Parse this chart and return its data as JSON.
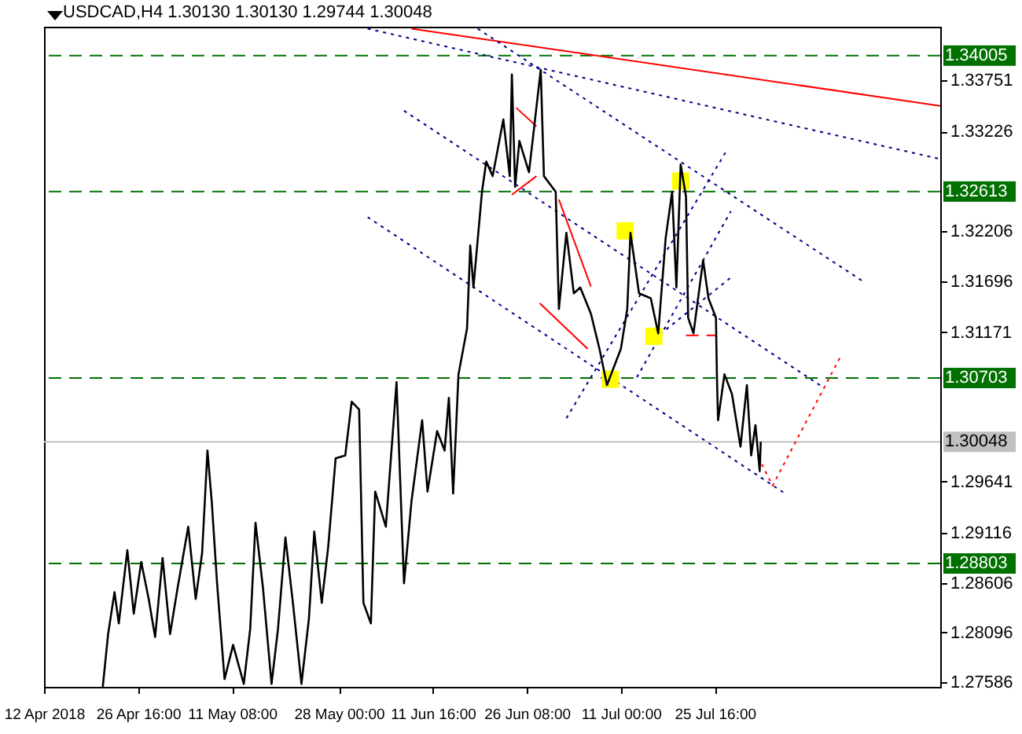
{
  "chart_data": {
    "type": "line",
    "title": "USDCAD,H4  1.30130 1.30130 1.29744 1.30048",
    "xlim": [
      "2018-04-12T00:00",
      "2018-08-29T20:00"
    ],
    "xticks": [
      {
        "value": "2018-04-12T00:00",
        "label": "12 Apr 2018"
      },
      {
        "value": "2018-04-26T16:00",
        "label": "26 Apr 16:00"
      },
      {
        "value": "2018-05-11T08:00",
        "label": "11 May 08:00"
      },
      {
        "value": "2018-05-28T00:00",
        "label": "28 May 00:00"
      },
      {
        "value": "2018-06-11T16:00",
        "label": "11 Jun 16:00"
      },
      {
        "value": "2018-06-26T08:00",
        "label": "26 Jun 08:00"
      },
      {
        "value": "2018-07-11T00:00",
        "label": "11 Jul 00:00"
      },
      {
        "value": "2018-07-25T16:00",
        "label": "25 Jul 16:00"
      }
    ],
    "ylim": [
      1.2754,
      1.343
    ],
    "yticks": [
      1.33751,
      1.33226,
      1.32206,
      1.31696,
      1.31171,
      1.29641,
      1.29116,
      1.28606,
      1.28096,
      1.27586
    ],
    "series": [
      {
        "color": "#000000",
        "x": [
          "2018-04-21T04:00",
          "2018-04-22T00:00",
          "2018-04-23T00:00",
          "2018-04-23T16:00",
          "2018-04-25T00:00",
          "2018-04-26T00:00",
          "2018-04-27T04:00",
          "2018-04-28T08:00",
          "2018-04-29T08:00",
          "2018-04-30T12:00",
          "2018-05-01T16:00",
          "2018-05-02T20:00",
          "2018-05-04T12:00",
          "2018-05-05T16:00",
          "2018-05-06T16:00",
          "2018-05-07T12:00",
          "2018-05-08T04:00",
          "2018-05-09T00:00",
          "2018-05-10T04:00",
          "2018-05-11T12:00",
          "2018-05-13T04:00",
          "2018-05-14T04:00",
          "2018-05-15T00:00",
          "2018-05-16T04:00",
          "2018-05-17T12:00",
          "2018-05-18T12:00",
          "2018-05-19T16:00",
          "2018-05-20T20:00",
          "2018-05-22T04:00",
          "2018-05-23T08:00",
          "2018-05-24T04:00",
          "2018-05-25T08:00",
          "2018-05-26T08:00",
          "2018-05-27T12:00",
          "2018-05-29T00:00",
          "2018-05-30T00:00",
          "2018-05-31T04:00",
          "2018-05-31T20:00",
          "2018-06-02T00:00",
          "2018-06-02T16:00",
          "2018-06-04T08:00",
          "2018-06-06T00:00",
          "2018-06-07T04:00",
          "2018-06-08T08:00",
          "2018-06-10T00:00",
          "2018-06-10T20:00",
          "2018-06-12T08:00",
          "2018-06-13T12:00",
          "2018-06-14T04:00",
          "2018-06-14T20:00",
          "2018-06-15T16:00",
          "2018-06-17T00:00",
          "2018-06-17T12:00",
          "2018-06-18T00:00",
          "2018-06-19T08:00",
          "2018-06-20T00:00",
          "2018-06-21T00:00",
          "2018-06-22T16:00",
          "2018-06-23T16:00",
          "2018-06-24T00:00",
          "2018-06-24T12:00",
          "2018-06-25T04:00",
          "2018-06-26T16:00",
          "2018-06-27T08:00",
          "2018-06-28T12:00",
          "2018-06-29T00:00",
          "2018-06-30T20:00",
          "2018-07-01T08:00",
          "2018-07-02T12:00",
          "2018-07-03T16:00",
          "2018-07-04T16:00",
          "2018-07-06T08:00",
          "2018-07-07T16:00",
          "2018-07-08T20:00",
          "2018-07-11T00:00",
          "2018-07-12T00:00",
          "2018-07-12T12:00",
          "2018-07-13T20:00",
          "2018-07-15T16:00",
          "2018-07-16T20:00",
          "2018-07-18T00:00",
          "2018-07-19T00:00",
          "2018-07-19T16:00",
          "2018-07-20T08:00",
          "2018-07-21T04:00",
          "2018-07-21T12:00",
          "2018-07-22T08:00",
          "2018-07-23T20:00",
          "2018-07-24T16:00",
          "2018-07-25T20:00",
          "2018-07-26T00:00",
          "2018-07-26T04:00",
          "2018-07-27T04:00",
          "2018-07-28T08:00",
          "2018-07-29T16:00",
          "2018-07-30T16:00",
          "2018-07-31T08:00",
          "2018-08-01T00:00",
          "2018-08-01T16:00",
          "2018-08-01T20:00"
        ],
        "values": [
          1.2754,
          1.2808,
          1.2851,
          1.2819,
          1.2894,
          1.2829,
          1.2882,
          1.2844,
          1.2805,
          1.2886,
          1.2808,
          1.2855,
          1.2918,
          1.2844,
          1.2891,
          1.2996,
          1.2944,
          1.286,
          1.2762,
          1.2797,
          1.2757,
          1.2813,
          1.2922,
          1.2855,
          1.2757,
          1.2813,
          1.2907,
          1.284,
          1.2757,
          1.2824,
          1.2913,
          1.284,
          1.2897,
          1.2988,
          1.2991,
          1.3046,
          1.3038,
          1.284,
          1.2819,
          1.2954,
          1.2918,
          1.3066,
          1.286,
          1.2944,
          1.3027,
          1.2954,
          1.3016,
          1.2996,
          1.305,
          1.2952,
          1.3074,
          1.3121,
          1.3206,
          1.3163,
          1.3261,
          1.3292,
          1.3277,
          1.3335,
          1.3277,
          1.3381,
          1.3266,
          1.3313,
          1.3281,
          1.3319,
          1.3386,
          1.3277,
          1.3261,
          1.3141,
          1.3219,
          1.3157,
          1.3163,
          1.3136,
          1.31,
          1.3063,
          1.31,
          1.3141,
          1.3219,
          1.3157,
          1.3152,
          1.3116,
          1.3214,
          1.3261,
          1.3163,
          1.3289,
          1.3256,
          1.3132,
          1.3116,
          1.3191,
          1.3152,
          1.3132,
          1.3069,
          1.3027,
          1.3074,
          1.3054,
          1.3,
          1.3063,
          1.2991,
          1.3022,
          1.2975,
          1.3005
        ]
      },
      {
        "color": "#ff0000",
        "x": [
          "2018-06-08T08:00",
          "2018-08-29T20:00"
        ],
        "values": [
          1.3428,
          1.3349
        ]
      },
      {
        "color": "#00008b",
        "line_style": "dotted",
        "x": [
          "2018-06-01T12:00",
          "2018-08-29T12:00"
        ],
        "values": [
          1.3428,
          1.3295
        ]
      },
      {
        "color": "#00008b",
        "line_style": "dotted",
        "x": [
          "2018-06-18T16:00",
          "2018-08-17T20:00"
        ],
        "values": [
          1.3428,
          1.3169
        ]
      },
      {
        "color": "#00008b",
        "line_style": "dotted",
        "x": [
          "2018-06-07T04:00",
          "2018-08-11T12:00"
        ],
        "values": [
          1.3344,
          1.3061
        ]
      },
      {
        "color": "#00008b",
        "line_style": "dotted",
        "x": [
          "2018-06-01T12:00",
          "2018-08-05T20:00"
        ],
        "values": [
          1.3235,
          1.2951
        ]
      },
      {
        "color": "#00008b",
        "line_style": "dotted",
        "x": [
          "2018-07-02T12:00",
          "2018-07-27T16:00"
        ],
        "values": [
          1.3029,
          1.3305
        ]
      },
      {
        "color": "#00008b",
        "line_style": "dotted",
        "x": [
          "2018-07-13T12:00",
          "2018-07-28T04:00"
        ],
        "values": [
          1.3071,
          1.3241
        ]
      },
      {
        "color": "#00008b",
        "line_style": "dotted",
        "x": [
          "2018-07-16T04:00",
          "2018-07-28T08:00"
        ],
        "values": [
          1.311,
          1.3174
        ]
      },
      {
        "color": "#ff0000",
        "x": [
          "2018-06-24T16:00",
          "2018-06-27T20:00"
        ],
        "values": [
          1.3347,
          1.3328
        ]
      },
      {
        "color": "#ff0000",
        "x": [
          "2018-06-24T00:00",
          "2018-06-27T20:00"
        ],
        "values": [
          1.3258,
          1.3277
        ]
      },
      {
        "color": "#ff0000",
        "x": [
          "2018-07-01T08:00",
          "2018-07-06T08:00"
        ],
        "values": [
          1.3253,
          1.3164
        ]
      },
      {
        "color": "#ff0000",
        "x": [
          "2018-06-28T08:00",
          "2018-07-05T20:00"
        ],
        "values": [
          1.3147,
          1.31
        ]
      },
      {
        "color": "#ff0000",
        "line_style": "dashed",
        "x": [
          "2018-07-21T04:00",
          "2018-07-25T20:00"
        ],
        "values": [
          1.3114,
          1.3114
        ]
      },
      {
        "color": "#ff0000",
        "line_style": "dotted",
        "x": [
          "2018-08-02T00:00",
          "2018-08-03T16:00",
          "2018-08-14T08:00"
        ],
        "values": [
          1.2982,
          1.296,
          1.3093
        ]
      },
      {
        "type": "scatter",
        "marker": "square",
        "color": "#ffff00",
        "x": [
          "2018-07-11T16:00",
          "2018-07-20T08:00",
          "2018-07-16T04:00",
          "2018-07-09T08:00"
        ],
        "values": [
          1.3221,
          1.3272,
          1.3113,
          1.3069
        ]
      }
    ],
    "ref_lines": [
      {
        "axis": "y",
        "value": 1.34005,
        "label": "1.34005",
        "color": "#007000",
        "line_style": "dashed"
      },
      {
        "axis": "y",
        "value": 1.32613,
        "label": "1.32613",
        "color": "#007000",
        "line_style": "dashed"
      },
      {
        "axis": "y",
        "value": 1.30703,
        "label": "1.30703",
        "color": "#007000",
        "line_style": "dashed"
      },
      {
        "axis": "y",
        "value": 1.28803,
        "label": "1.28803",
        "color": "#007000",
        "line_style": "dashed"
      },
      {
        "axis": "y",
        "value": 1.30048,
        "label": "1.30048",
        "color": "#c0c0c0"
      }
    ]
  }
}
